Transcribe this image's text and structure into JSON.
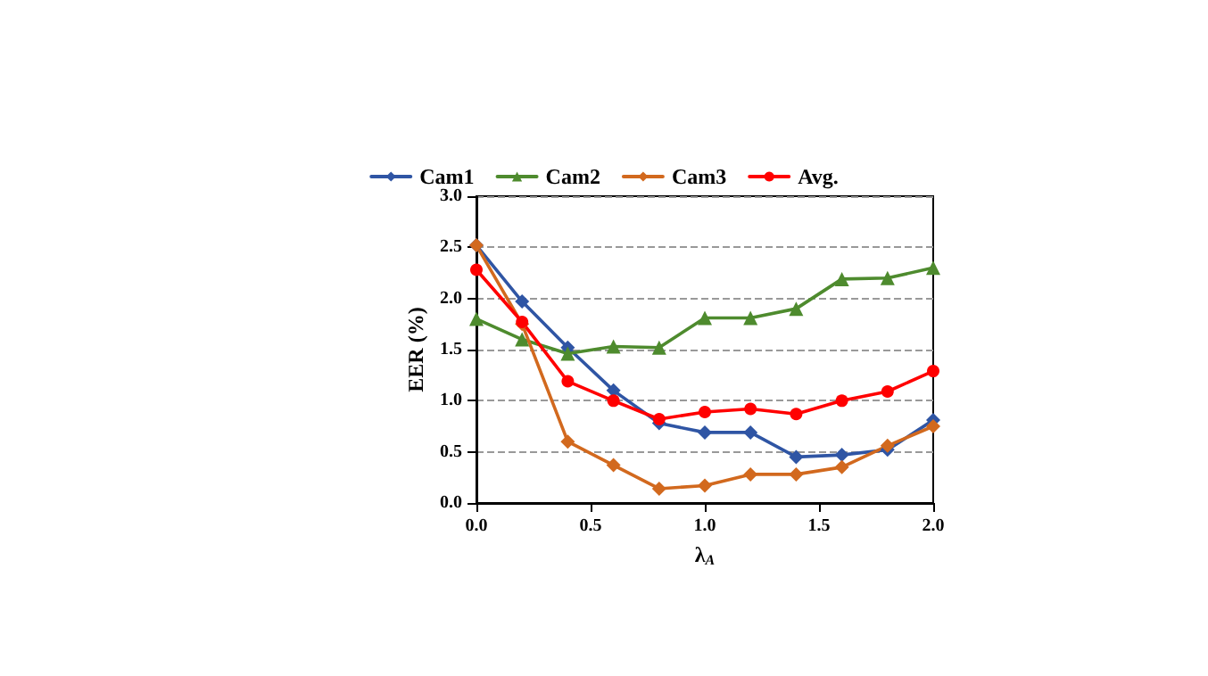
{
  "chart_data": {
    "type": "line",
    "xlabel": "λ$_{A}$",
    "ylabel": "EER (%)",
    "x": [
      0,
      0.2,
      0.4,
      0.6,
      0.8,
      1.0,
      1.2,
      1.4,
      1.6,
      1.8,
      2.0
    ],
    "series": [
      {
        "name": "Cam1",
        "color": "#2f55a4",
        "marker": "diamond",
        "values": [
          2.52,
          1.97,
          1.52,
          1.1,
          0.78,
          0.69,
          0.69,
          0.45,
          0.47,
          0.52,
          0.81
        ]
      },
      {
        "name": "Cam2",
        "color": "#4e8b2e",
        "marker": "triangle",
        "values": [
          1.8,
          1.6,
          1.46,
          1.53,
          1.52,
          1.81,
          1.81,
          1.9,
          2.19,
          2.2,
          2.3
        ]
      },
      {
        "name": "Cam3",
        "color": "#d2691e",
        "marker": "diamond",
        "values": [
          2.52,
          1.75,
          0.6,
          0.37,
          0.14,
          0.17,
          0.28,
          0.28,
          0.35,
          0.56,
          0.75
        ]
      },
      {
        "name": "Avg.",
        "color": "#ff0000",
        "marker": "circle",
        "values": [
          2.28,
          1.77,
          1.19,
          1.0,
          0.82,
          0.89,
          0.92,
          0.87,
          1.0,
          1.09,
          1.29
        ]
      }
    ],
    "xlim": [
      0,
      2.0
    ],
    "xticks": [
      {
        "value": 0,
        "label": "0.0"
      },
      0.5,
      {
        "value": 1,
        "label": "1.0"
      },
      1.5,
      {
        "value": 2,
        "label": "2.0"
      }
    ],
    "ylim": [
      0,
      3.0
    ],
    "yticks": [
      {
        "value": 0,
        "label": "0.0"
      },
      0.5,
      {
        "value": 1,
        "label": "1.0"
      },
      1.5,
      {
        "value": 2,
        "label": "2.0"
      },
      2.5,
      {
        "value": 3,
        "label": "3.0"
      }
    ],
    "grid": "y",
    "legend": "top",
    "line_style": "solid"
  }
}
